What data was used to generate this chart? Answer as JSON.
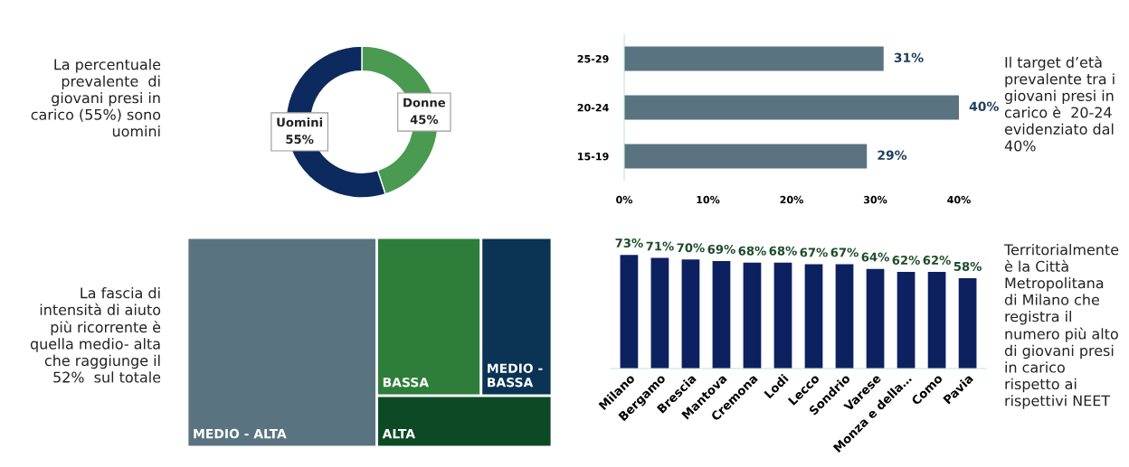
{
  "chart_data": [
    {
      "type": "donut",
      "categories": [
        "Donne",
        "Uomini"
      ],
      "values": [
        45,
        55
      ],
      "colors": [
        "#4a9a52",
        "#0d2a5e"
      ],
      "value_labels": [
        "45%",
        "55%"
      ],
      "annotations": [
        "La percentuale\nprevalente  di\ngiovani presi in\ncarico (55%) sono\nuomini"
      ]
    },
    {
      "type": "bar",
      "orientation": "horizontal",
      "categories": [
        "25-29",
        "20-24",
        "15-19"
      ],
      "values": [
        31,
        40,
        29
      ],
      "color": "#5a7380",
      "xlim": [
        0,
        40
      ],
      "xticks": [
        {
          "value": 0,
          "label": "0%"
        },
        {
          "value": 10,
          "label": "10%"
        },
        {
          "value": 20,
          "label": "20%"
        },
        {
          "value": 30,
          "label": "30%"
        },
        {
          "value": 40,
          "label": "40%"
        }
      ],
      "value_labels": [
        "31%",
        "40%",
        "29%"
      ],
      "grid": false,
      "annotations": [
        "Il target d’età\nprevalente tra i\ngiovani presi in\ncarico è  20-24\nevidenziato dal\n40%"
      ]
    },
    {
      "type": "other",
      "categories": [
        "MEDIO - ALTA",
        "BASSA",
        "MEDIO -\nBASSA",
        "ALTA"
      ],
      "colors": [
        "#5a7380",
        "#2e7d3a",
        "#0a3354",
        "#0c4a26"
      ],
      "annotations": [
        "La fascia di\nintensità di aiuto\npiù ricorrente è\nquella medio- alta\nche raggiunge il\n52%  sul totale"
      ]
    },
    {
      "type": "bar",
      "categories": [
        "Milano",
        "Bergamo",
        "Brescia",
        "Mantova",
        "Cremona",
        "Lodi",
        "Lecco",
        "Sondrio",
        "Varese",
        "Monza e della…",
        "Como",
        "Pavia"
      ],
      "values": [
        73,
        71,
        70,
        69,
        68,
        68,
        67,
        67,
        64,
        62,
        62,
        58
      ],
      "color": "#0d2160",
      "value_labels": [
        "73%",
        "71%",
        "70%",
        "69%",
        "68%",
        "68%",
        "67%",
        "67%",
        "64%",
        "62%",
        "62%",
        "58%"
      ],
      "grid": false,
      "annotations": [
        "Territorialmente\nè la Città\nMetropolitana\ndi Milano che\nregistra il\nnumero più alto\ndi giovani presi\nin carico\nrispetto ai\nrispettivi NEET"
      ]
    }
  ]
}
